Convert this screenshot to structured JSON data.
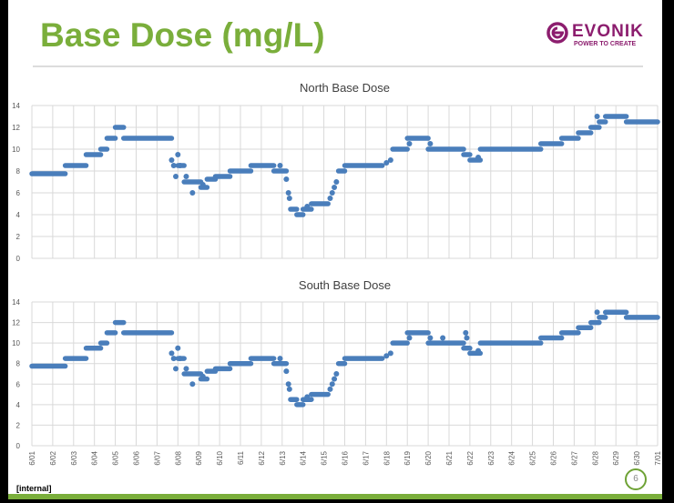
{
  "slide": {
    "title": "Base Dose (mg/L)",
    "logo_name": "EVONIK",
    "logo_tagline": "POWER TO CREATE",
    "classification": "[internal]",
    "page_number": "6"
  },
  "colors": {
    "series": "#4a7ebb",
    "title": "#7aae3b",
    "brand": "#8c1d6e"
  },
  "chart_data": [
    {
      "type": "scatter",
      "title": "North Base Dose",
      "xlabel": "",
      "ylabel": "",
      "ylim": [
        0,
        14
      ],
      "yticks": [
        "0",
        "2",
        "4",
        "6",
        "8",
        "10",
        "12",
        "14"
      ],
      "xtick_labels": [
        "6/01",
        "6/02",
        "6/03",
        "6/04",
        "6/05",
        "6/06",
        "6/07",
        "6/08",
        "6/09",
        "6/10",
        "6/11",
        "6/12",
        "6/13",
        "6/14",
        "6/15",
        "6/16",
        "6/17",
        "6/18",
        "6/19",
        "6/20",
        "6/21",
        "6/22",
        "6/23",
        "6/24",
        "6/25",
        "6/26",
        "6/27",
        "6/28",
        "6/29",
        "6/30",
        "7/01"
      ],
      "xlim_days": [
        0,
        30
      ],
      "grid": true,
      "step_segments": [
        [
          0,
          1.6,
          7.75
        ],
        [
          1.6,
          2.6,
          8.5
        ],
        [
          2.6,
          3.3,
          9.5
        ],
        [
          3.3,
          3.6,
          10
        ],
        [
          3.6,
          4.0,
          11
        ],
        [
          4.0,
          4.4,
          12
        ],
        [
          4.4,
          6.7,
          11
        ],
        [
          7.0,
          7.3,
          8.5
        ],
        [
          7.3,
          8.1,
          7
        ],
        [
          8.1,
          8.4,
          6.5
        ],
        [
          8.4,
          8.8,
          7.25
        ],
        [
          8.8,
          9.5,
          7.5
        ],
        [
          9.5,
          10.5,
          8
        ],
        [
          10.5,
          11.6,
          8.5
        ],
        [
          11.6,
          12.2,
          8
        ],
        [
          12.4,
          12.7,
          4.5
        ],
        [
          12.7,
          13.0,
          4
        ],
        [
          13.0,
          13.4,
          4.5
        ],
        [
          13.4,
          14.2,
          5
        ],
        [
          14.7,
          15.0,
          8
        ],
        [
          15.0,
          16.8,
          8.5
        ],
        [
          17.3,
          18.0,
          10
        ],
        [
          18.0,
          19.0,
          11
        ],
        [
          19.0,
          20.7,
          10
        ],
        [
          20.7,
          21.0,
          9.5
        ],
        [
          21.0,
          21.5,
          9
        ],
        [
          21.5,
          24.4,
          10
        ],
        [
          24.4,
          25.4,
          10.5
        ],
        [
          25.4,
          26.2,
          11
        ],
        [
          26.2,
          26.8,
          11.5
        ],
        [
          26.8,
          27.2,
          12
        ],
        [
          27.2,
          27.5,
          12.5
        ],
        [
          27.5,
          28.5,
          13
        ],
        [
          28.5,
          30,
          12.5
        ]
      ],
      "points": [
        [
          6.7,
          9
        ],
        [
          6.8,
          8.5
        ],
        [
          6.9,
          7.5
        ],
        [
          7.0,
          9.5
        ],
        [
          7.1,
          8.5
        ],
        [
          7.4,
          7.5
        ],
        [
          7.7,
          6
        ],
        [
          8.2,
          6.75
        ],
        [
          11.9,
          8.5
        ],
        [
          12.2,
          7.25
        ],
        [
          12.3,
          6
        ],
        [
          12.35,
          5.5
        ],
        [
          13.2,
          4.75
        ],
        [
          14.3,
          5.5
        ],
        [
          14.4,
          6
        ],
        [
          14.5,
          6.5
        ],
        [
          14.6,
          7
        ],
        [
          17.0,
          8.75
        ],
        [
          17.2,
          9
        ],
        [
          18.1,
          10.5
        ],
        [
          19.1,
          10.5
        ],
        [
          21.4,
          9.25
        ],
        [
          27.1,
          13
        ]
      ]
    },
    {
      "type": "scatter",
      "title": "South Base Dose",
      "xlabel": "",
      "ylabel": "",
      "ylim": [
        0,
        14
      ],
      "yticks": [
        "0",
        "2",
        "4",
        "6",
        "8",
        "10",
        "12",
        "14"
      ],
      "xtick_labels": [
        "6/01",
        "6/02",
        "6/03",
        "6/04",
        "6/05",
        "6/06",
        "6/07",
        "6/08",
        "6/09",
        "6/10",
        "6/11",
        "6/12",
        "6/13",
        "6/14",
        "6/15",
        "6/16",
        "6/17",
        "6/18",
        "6/19",
        "6/20",
        "6/21",
        "6/22",
        "6/23",
        "6/24",
        "6/25",
        "6/26",
        "6/27",
        "6/28",
        "6/29",
        "6/30",
        "7/01"
      ],
      "xlim_days": [
        0,
        30
      ],
      "grid": true,
      "step_segments": [
        [
          0,
          1.6,
          7.75
        ],
        [
          1.6,
          2.6,
          8.5
        ],
        [
          2.6,
          3.3,
          9.5
        ],
        [
          3.3,
          3.6,
          10
        ],
        [
          3.6,
          4.0,
          11
        ],
        [
          4.0,
          4.4,
          12
        ],
        [
          4.4,
          6.7,
          11
        ],
        [
          7.0,
          7.3,
          8.5
        ],
        [
          7.3,
          8.1,
          7
        ],
        [
          8.1,
          8.4,
          6.5
        ],
        [
          8.4,
          8.8,
          7.25
        ],
        [
          8.8,
          9.5,
          7.5
        ],
        [
          9.5,
          10.5,
          8
        ],
        [
          10.5,
          11.6,
          8.5
        ],
        [
          11.6,
          12.2,
          8
        ],
        [
          12.4,
          12.7,
          4.5
        ],
        [
          12.7,
          13.0,
          4
        ],
        [
          13.0,
          13.4,
          4.5
        ],
        [
          13.4,
          14.2,
          5
        ],
        [
          14.7,
          15.0,
          8
        ],
        [
          15.0,
          16.8,
          8.5
        ],
        [
          17.3,
          18.0,
          10
        ],
        [
          18.0,
          19.0,
          11
        ],
        [
          19.0,
          20.7,
          10
        ],
        [
          20.7,
          21.0,
          9.5
        ],
        [
          21.0,
          21.5,
          9
        ],
        [
          21.5,
          24.4,
          10
        ],
        [
          24.4,
          25.4,
          10.5
        ],
        [
          25.4,
          26.2,
          11
        ],
        [
          26.2,
          26.8,
          11.5
        ],
        [
          26.8,
          27.2,
          12
        ],
        [
          27.2,
          27.5,
          12.5
        ],
        [
          27.5,
          28.5,
          13
        ],
        [
          28.5,
          30,
          12.5
        ]
      ],
      "points": [
        [
          6.7,
          9
        ],
        [
          6.8,
          8.5
        ],
        [
          6.9,
          7.5
        ],
        [
          7.0,
          9.5
        ],
        [
          7.1,
          8.5
        ],
        [
          7.4,
          7.5
        ],
        [
          7.7,
          6
        ],
        [
          8.2,
          6.75
        ],
        [
          11.9,
          8.5
        ],
        [
          12.2,
          7.25
        ],
        [
          12.3,
          6
        ],
        [
          12.35,
          5.5
        ],
        [
          13.2,
          4.75
        ],
        [
          14.3,
          5.5
        ],
        [
          14.4,
          6
        ],
        [
          14.5,
          6.5
        ],
        [
          14.6,
          7
        ],
        [
          17.0,
          8.75
        ],
        [
          17.2,
          9
        ],
        [
          18.1,
          10.5
        ],
        [
          19.1,
          10.5
        ],
        [
          19.7,
          10.5
        ],
        [
          20.8,
          11
        ],
        [
          20.85,
          10.5
        ],
        [
          21.4,
          9.25
        ],
        [
          27.1,
          13
        ]
      ]
    }
  ]
}
